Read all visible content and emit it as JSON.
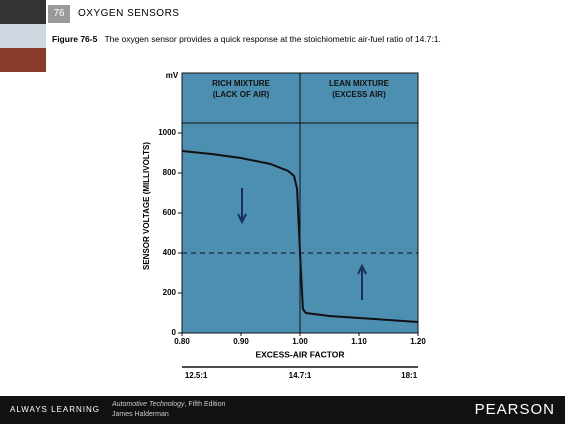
{
  "header": {
    "chapter": "76",
    "section": "OXYGEN SENSORS"
  },
  "caption": {
    "label": "Figure 76-5",
    "text": "The oxygen sensor provides a quick response at the stoichiometric air-fuel ratio of 14.7:1."
  },
  "footer": {
    "brand": "ALWAYS LEARNING",
    "book": "Automotive Technology",
    "edition": ", Fifth Edition",
    "author": "James Halderman",
    "publisher": "PEARSON"
  },
  "chart_data": {
    "type": "line",
    "y_unit": "mV",
    "y_label": "SENSOR VOLTAGE (MILLIVOLTS)",
    "x_label": "EXCESS-AIR FACTOR",
    "zones": [
      {
        "label": [
          "RICH MIXTURE",
          "(LACK OF AIR)"
        ]
      },
      {
        "label": [
          "LEAN MIXTURE",
          "(EXCESS AIR)"
        ]
      }
    ],
    "zone_divider": 1.0,
    "reference_line": 400,
    "x": [
      0.8,
      0.85,
      0.9,
      0.95,
      0.98,
      0.99,
      0.995,
      1.0,
      1.005,
      1.01,
      1.05,
      1.1,
      1.15,
      1.2
    ],
    "series": [
      {
        "color": "#111111",
        "values": [
          910,
          895,
          875,
          845,
          810,
          785,
          720,
          400,
          120,
          100,
          85,
          75,
          65,
          55
        ]
      }
    ],
    "xlim": [
      0.8,
      1.2
    ],
    "ylim": [
      0,
      1300
    ],
    "xticks": [
      {
        "value": 0.8,
        "label": "0.80"
      },
      {
        "value": 0.9,
        "label": "0.90"
      },
      {
        "value": 1.0,
        "label": "1.00"
      },
      {
        "value": 1.1,
        "label": "1.10"
      },
      {
        "value": 1.2,
        "label": "1.20"
      }
    ],
    "yticks": [
      0,
      200,
      400,
      600,
      800,
      1000
    ],
    "x2ticks": [
      {
        "value": 0.824,
        "label": "12.5:1"
      },
      {
        "value": 1.0,
        "label": "14.7:1"
      },
      {
        "value": 1.185,
        "label": "18:1"
      }
    ],
    "plot_color": "#4d8fb0"
  }
}
